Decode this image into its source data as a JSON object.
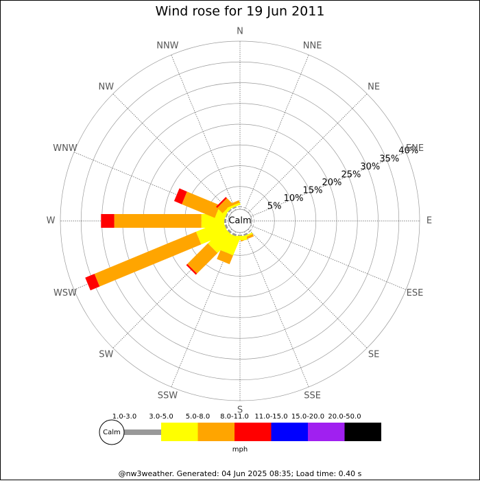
{
  "chart_data": {
    "type": "wind_rose",
    "title": "Wind rose for 19 Jun 2011",
    "center_label": "Calm",
    "categories": [
      "N",
      "NNE",
      "NE",
      "ENE",
      "E",
      "ESE",
      "SE",
      "SSE",
      "S",
      "SSW",
      "SW",
      "WSW",
      "W",
      "WNW",
      "NW",
      "NNW"
    ],
    "series": [
      {
        "name": "1.0-3.0",
        "color": "#999999",
        "values": [
          0.2,
          0.1,
          0.1,
          0.1,
          0.1,
          0.1,
          0.2,
          0.4,
          0.3,
          0.5,
          0.5,
          0.5,
          0.5,
          0.3,
          0.3,
          0.3
        ]
      },
      {
        "name": "3.0-5.0",
        "color": "#ffff00",
        "values": [
          0,
          0,
          0,
          0,
          0,
          0,
          0,
          0.4,
          1,
          4.5,
          5.5,
          7,
          5.5,
          2.3,
          0.7,
          0.5
        ]
      },
      {
        "name": "5.0-8.0",
        "color": "#ffa500",
        "values": [
          0,
          0,
          0,
          0,
          0,
          0,
          0,
          0.6,
          0,
          2.3,
          7,
          26.5,
          21,
          8.6,
          1.8,
          0.6
        ]
      },
      {
        "name": "8.0-11.0",
        "color": "#ff0000",
        "values": [
          0,
          0,
          0,
          0,
          0,
          0,
          0,
          0,
          0,
          0,
          0.4,
          2.4,
          3.2,
          2,
          0.4,
          0
        ]
      },
      {
        "name": "11.0-15.0",
        "color": "#0000ff",
        "values": [
          0,
          0,
          0,
          0,
          0,
          0,
          0,
          0,
          0,
          0,
          0,
          0,
          0,
          0,
          0,
          0
        ]
      },
      {
        "name": "15.0-20.0",
        "color": "#a020f0",
        "values": [
          0,
          0,
          0,
          0,
          0,
          0,
          0,
          0,
          0,
          0,
          0,
          0,
          0,
          0,
          0,
          0
        ]
      },
      {
        "name": "20.0-50.0",
        "color": "#000000",
        "values": [
          0,
          0,
          0,
          0,
          0,
          0,
          0,
          0,
          0,
          0,
          0,
          0,
          0,
          0,
          0,
          0
        ]
      }
    ],
    "rlim": [
      0,
      40
    ],
    "rticks": [
      {
        "value": 5,
        "label": "5%"
      },
      {
        "value": 10,
        "label": "10%"
      },
      {
        "value": 15,
        "label": "15%"
      },
      {
        "value": 20,
        "label": "20%"
      },
      {
        "value": 25,
        "label": "25%"
      },
      {
        "value": 30,
        "label": "30%"
      },
      {
        "value": 35,
        "label": "35%"
      },
      {
        "value": 40,
        "label": "40%"
      }
    ],
    "legend_unit": "mph",
    "footer": "@nw3weather. Generated: 04 Jun 2025 08:35; Load time: 0.40 s"
  }
}
